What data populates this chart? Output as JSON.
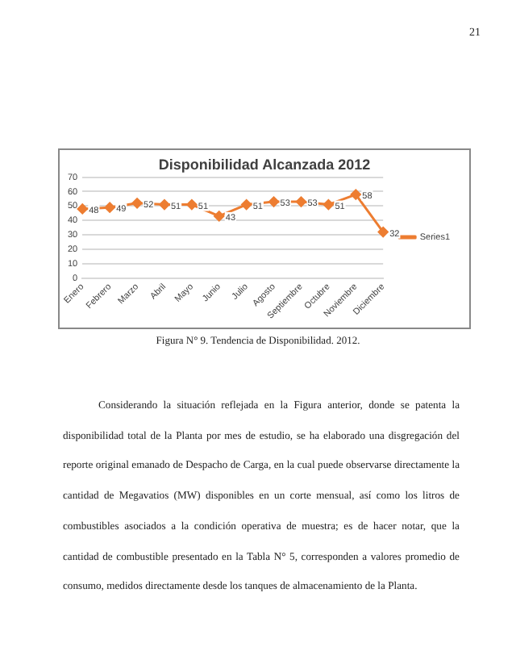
{
  "chart_data": {
    "type": "line",
    "title": "Disponibilidad Alcanzada 2012",
    "categories": [
      "Enero",
      "Febrero",
      "Marzo",
      "Abril",
      "Mayo",
      "Junio",
      "Julio",
      "Agosto",
      "Septiembre",
      "Octubre",
      "Noviembre",
      "Diciembre"
    ],
    "series": [
      {
        "name": "Series1",
        "color": "#ed7d31",
        "values": [
          48,
          49,
          52,
          51,
          51,
          43,
          51,
          53,
          53,
          51,
          58,
          32
        ]
      }
    ],
    "ylim": [
      0,
      70
    ],
    "yticks": [
      0,
      10,
      20,
      30,
      40,
      50,
      60,
      70
    ],
    "grid": "y",
    "legend": "right",
    "marker": "diamond",
    "data_labels": true,
    "annotations": [
      "21",
      "Figura N° 9. Tendencia de Disponibilidad. 2012.",
      "Considerando la situación reflejada en la Figura anterior, donde se patenta la disponibilidad total de la Planta por mes de estudio, se ha elaborado una disgregación del reporte original emanado de Despacho de Carga, en la cual puede observarse directamente la cantidad de Megavatios (MW) disponibles en un corte mensual, así como los litros de combustibles asociados a la condición operativa de muestra; es de hacer notar, que la cantidad de combustible presentado en la Tabla N° 5, corresponden a valores promedio de consumo, medidos directamente desde los tanques de almacenamiento de la Planta."
    ]
  }
}
